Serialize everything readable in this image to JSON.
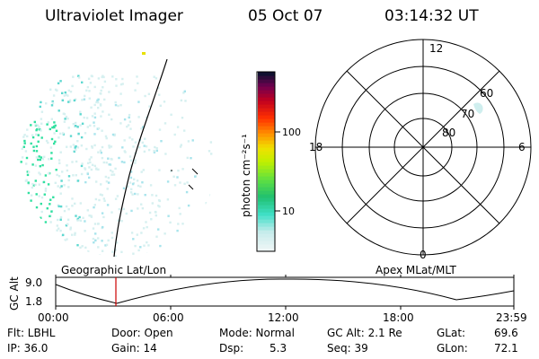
{
  "header": {
    "instrument": "Ultraviolet Imager",
    "date": "05 Oct 07",
    "time": "03:14:32 UT"
  },
  "colorbar": {
    "unit_label": "photon cm⁻²s⁻¹",
    "ticks": [
      "100",
      "10"
    ]
  },
  "polar_plot": {
    "mlt_labels": [
      "12",
      "18",
      "6",
      "0"
    ],
    "lat_labels": [
      "60",
      "70",
      "80"
    ]
  },
  "timeline": {
    "left_caption": "Geographic Lat/Lon",
    "right_caption": "Apex MLat/MLT",
    "axis_title": "GC Alt",
    "y_max": "9.0",
    "y_min": "1.8",
    "time_ticks": [
      "00:00",
      "06:00",
      "12:00",
      "18:00",
      "23:59"
    ]
  },
  "status": {
    "flt": "Flt: LBHL",
    "ip": "IP: 36.0",
    "door": "Door: Open",
    "gain": "Gain: 14",
    "mode": "Mode: Normal",
    "dsp_label": "Dsp:",
    "dsp_value": "5.3",
    "gc_alt": "GC Alt: 2.1 Re",
    "seq": "Seq: 39",
    "glat_label": "GLat:",
    "glat_value": "69.6",
    "glon_label": "GLon:",
    "glon_value": "72.1"
  }
}
